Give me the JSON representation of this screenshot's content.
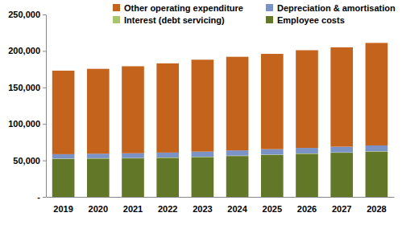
{
  "chart_data": {
    "type": "bar",
    "stacked": true,
    "grid": false,
    "legend": "top",
    "categories": [
      "2019",
      "2020",
      "2021",
      "2022",
      "2023",
      "2024",
      "2025",
      "2026",
      "2027",
      "2028"
    ],
    "series": [
      {
        "name": "Employee costs",
        "color": "#627728",
        "values": [
          52000,
          52500,
          52800,
          53500,
          54500,
          56000,
          57500,
          59000,
          60500,
          62000
        ]
      },
      {
        "name": "Interest (debt servicing)",
        "color": "#a9c46a",
        "values": [
          500,
          500,
          500,
          500,
          500,
          500,
          500,
          500,
          500,
          500
        ]
      },
      {
        "name": "Depreciation & amortisation",
        "color": "#7b93c4",
        "values": [
          6000,
          6200,
          6500,
          6700,
          7000,
          7200,
          7400,
          7600,
          7800,
          8000
        ]
      },
      {
        "name": "Other operating expenditure",
        "color": "#c4631c",
        "values": [
          114500,
          116300,
          119200,
          122300,
          126000,
          128300,
          130600,
          133900,
          136200,
          140500
        ]
      }
    ],
    "ylim": [
      0,
      250000
    ],
    "yticks": [
      {
        "value": 0,
        "label": "-"
      },
      {
        "value": 50000,
        "label": "50,000"
      },
      {
        "value": 100000,
        "label": "100,000"
      },
      {
        "value": 150000,
        "label": "150,000"
      },
      {
        "value": 200000,
        "label": "200,000"
      },
      {
        "value": 250000,
        "label": "250,000"
      }
    ]
  }
}
